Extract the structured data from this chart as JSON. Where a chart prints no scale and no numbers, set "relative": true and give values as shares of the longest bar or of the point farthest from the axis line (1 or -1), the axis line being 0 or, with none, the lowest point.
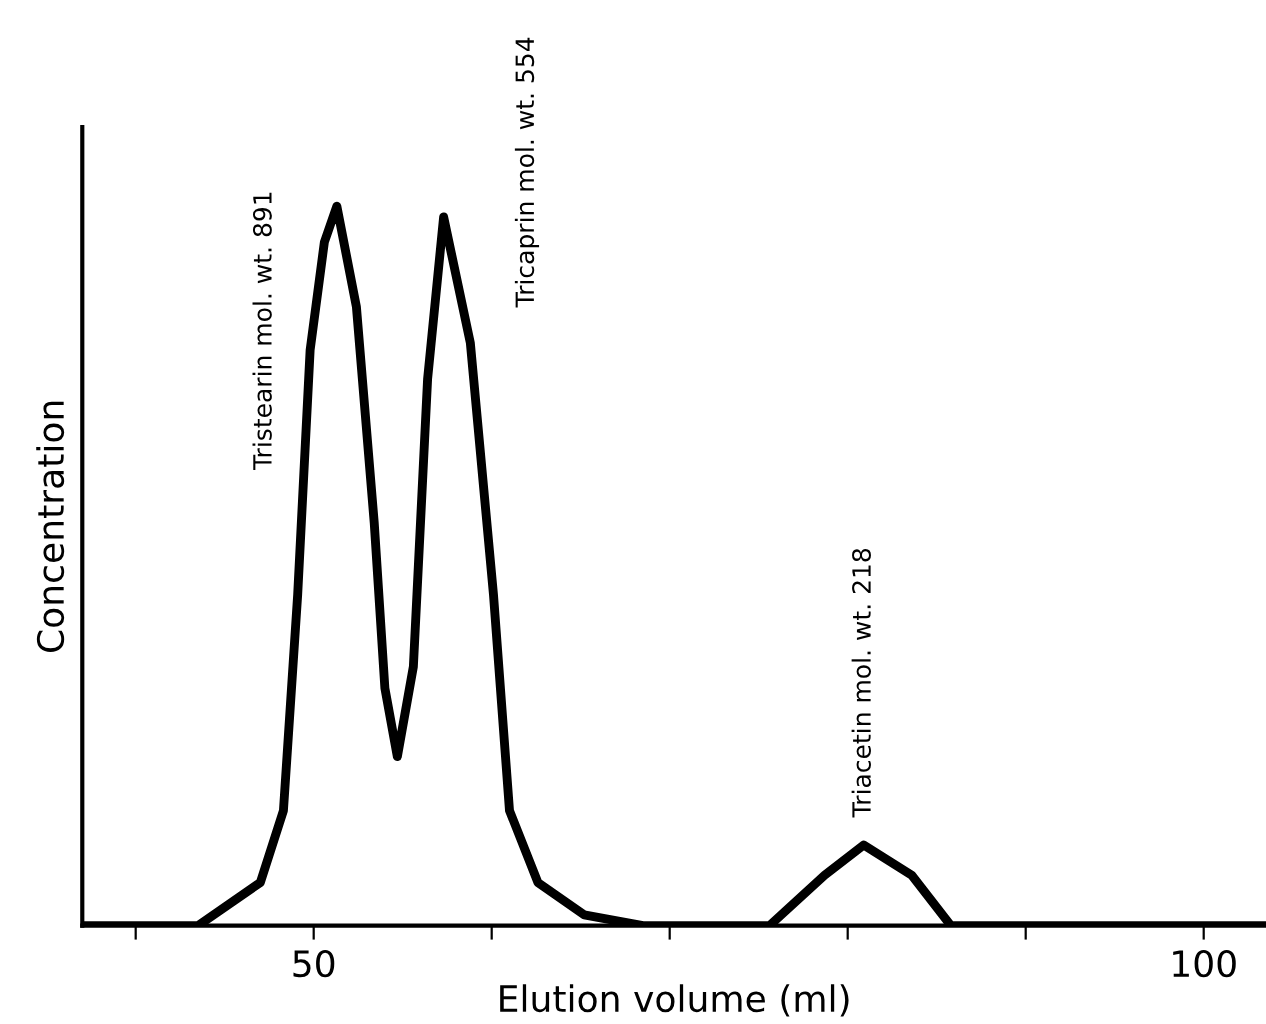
{
  "chart_data": {
    "type": "line",
    "relative": true,
    "xlabel": "Elution volume (ml)",
    "ylabel": "Concentration",
    "xlim": [
      37,
      103.5
    ],
    "xticks": [
      {
        "value": 40,
        "label": null
      },
      50,
      {
        "value": 60,
        "label": null
      },
      {
        "value": 70,
        "label": null
      },
      {
        "value": 80,
        "label": null
      },
      {
        "value": 90,
        "label": null
      },
      100
    ],
    "series": [
      {
        "color": "#000000",
        "x": [
          37,
          43.5,
          47.0,
          48.3,
          49.1,
          49.8,
          50.6,
          51.3,
          52.4,
          53.4,
          54.0,
          54.7,
          55.6,
          56.4,
          57.3,
          58.8,
          60.1,
          61.0,
          62.6,
          65.2,
          68.5,
          75.6,
          78.7,
          80.9,
          83.6,
          85.8,
          103.5
        ],
        "values": [
          0,
          0,
          0.06,
          0.16,
          0.46,
          0.8,
          0.95,
          1.0,
          0.86,
          0.56,
          0.33,
          0.235,
          0.36,
          0.76,
          0.985,
          0.81,
          0.46,
          0.16,
          0.06,
          0.015,
          0,
          0,
          0.07,
          0.112,
          0.07,
          0,
          0
        ]
      }
    ],
    "annotations": [
      {
        "text": "Tristearin mol. wt. 891",
        "x": 51.3,
        "y": 1.0
      },
      {
        "text": "Tricaprin mol. wt. 554",
        "x": 57.3,
        "y": 0.985
      },
      {
        "text": "Triacetin mol. wt. 218",
        "x": 80.9,
        "y": 0.112
      }
    ],
    "grid": false,
    "legend": false,
    "marker": "none",
    "line_style": "solid"
  }
}
